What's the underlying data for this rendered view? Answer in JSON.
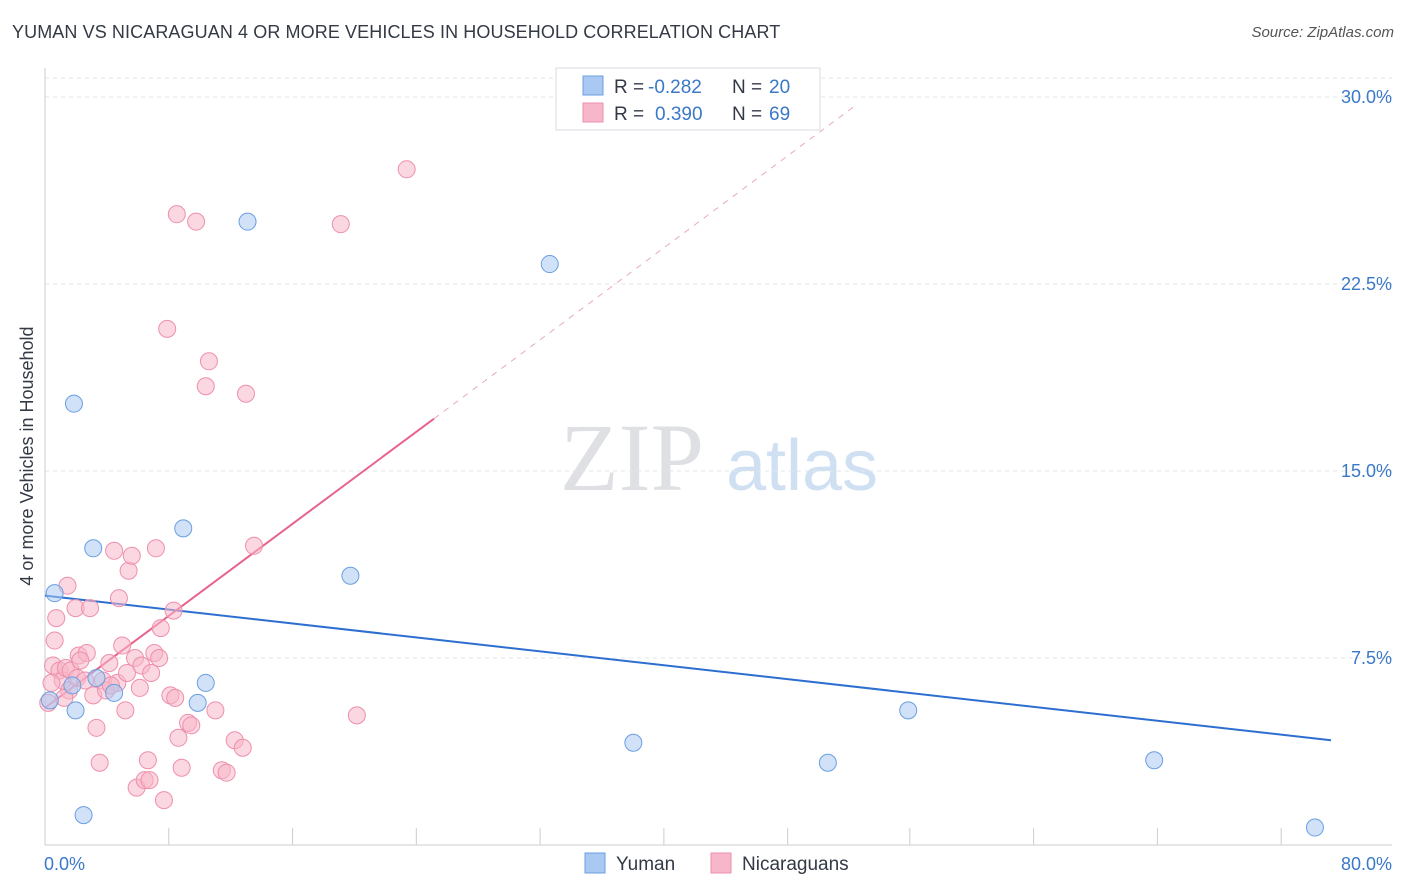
{
  "header": {
    "title": "YUMAN VS NICARAGUAN 4 OR MORE VEHICLES IN HOUSEHOLD CORRELATION CHART",
    "source": "Source: ZipAtlas.com"
  },
  "watermark": {
    "zip": "ZIP",
    "atlas": "atlas"
  },
  "legend": {
    "rows": [
      {
        "r_label": "R =",
        "r_value": "-0.282",
        "n_label": "N =",
        "n_value": "20",
        "color": "#a9c9f2"
      },
      {
        "r_label": "R =",
        "r_value": "0.390",
        "n_label": "N =",
        "n_value": "69",
        "color": "#f7b6c9"
      }
    ]
  },
  "bottom_legend": [
    {
      "label": "Yuman",
      "color": "#a9c9f2"
    },
    {
      "label": "Nicaraguans",
      "color": "#f7b6c9"
    }
  ],
  "chart_data": {
    "type": "scatter",
    "title": "YUMAN VS NICARAGUAN 4 OR MORE VEHICLES IN HOUSEHOLD CORRELATION CHART",
    "xlabel": "",
    "ylabel": "4 or more Vehicles in Household",
    "xlim": [
      0,
      80
    ],
    "ylim": [
      0,
      30.5
    ],
    "y_ticks": [
      {
        "value": 7.5,
        "label": "7.5%"
      },
      {
        "value": 15,
        "label": "15.0%"
      },
      {
        "value": 22.5,
        "label": "22.5%"
      },
      {
        "value": 30,
        "label": "30.0%"
      }
    ],
    "x_tick_labels": {
      "min": "0.0%",
      "max": "80.0%"
    },
    "x_minor_ticks": [
      7.7,
      15.4,
      23.1,
      30.8,
      38.5,
      46.2,
      53.8,
      61.5,
      69.2,
      76.9
    ],
    "series": [
      {
        "name": "Yuman",
        "color": "#a9c9f2",
        "stroke": "#6a9fe0",
        "trend": {
          "x0": 0,
          "y0": 10.0,
          "x1": 80,
          "y1": 4.2,
          "color": "#2d6fd1"
        },
        "points": [
          [
            0.3,
            5.8
          ],
          [
            0.6,
            10.1
          ],
          [
            1.7,
            6.4
          ],
          [
            1.8,
            17.7
          ],
          [
            1.9,
            5.4
          ],
          [
            2.4,
            1.2
          ],
          [
            3.0,
            11.9
          ],
          [
            3.2,
            6.7
          ],
          [
            4.3,
            6.1
          ],
          [
            8.6,
            12.7
          ],
          [
            9.5,
            5.7
          ],
          [
            10.0,
            6.5
          ],
          [
            12.6,
            25.0
          ],
          [
            19.0,
            10.8
          ],
          [
            31.4,
            23.3
          ],
          [
            36.6,
            4.1
          ],
          [
            48.7,
            3.3
          ],
          [
            53.7,
            5.4
          ],
          [
            69.0,
            3.4
          ],
          [
            79.0,
            0.7
          ]
        ]
      },
      {
        "name": "Nicaraguans",
        "color": "#f7b6c9",
        "stroke": "#ee8fab",
        "trend": {
          "x0": 0,
          "y0": 5.5,
          "x1": 24.2,
          "y1": 17.1,
          "dash_to_x": 50.5,
          "dash_to_y": 29.7,
          "color": "#e8638c"
        },
        "points": [
          [
            0.2,
            5.7
          ],
          [
            0.5,
            7.2
          ],
          [
            0.6,
            8.2
          ],
          [
            0.7,
            9.1
          ],
          [
            0.9,
            7.0
          ],
          [
            1.1,
            6.6
          ],
          [
            1.3,
            7.1
          ],
          [
            1.4,
            10.4
          ],
          [
            1.5,
            6.2
          ],
          [
            1.6,
            7.0
          ],
          [
            1.9,
            9.5
          ],
          [
            2.0,
            6.7
          ],
          [
            2.1,
            7.6
          ],
          [
            2.5,
            6.6
          ],
          [
            2.6,
            7.7
          ],
          [
            2.8,
            9.5
          ],
          [
            3.0,
            6.0
          ],
          [
            3.2,
            4.7
          ],
          [
            3.4,
            3.3
          ],
          [
            3.6,
            6.6
          ],
          [
            3.8,
            6.2
          ],
          [
            4.0,
            7.3
          ],
          [
            4.3,
            11.8
          ],
          [
            4.5,
            6.5
          ],
          [
            4.6,
            9.9
          ],
          [
            4.8,
            8.0
          ],
          [
            5.0,
            5.4
          ],
          [
            5.1,
            6.9
          ],
          [
            5.2,
            11.0
          ],
          [
            5.4,
            11.6
          ],
          [
            5.6,
            7.5
          ],
          [
            5.7,
            2.3
          ],
          [
            5.9,
            6.3
          ],
          [
            6.0,
            7.2
          ],
          [
            6.2,
            2.6
          ],
          [
            6.4,
            3.4
          ],
          [
            6.5,
            2.6
          ],
          [
            6.8,
            7.7
          ],
          [
            6.9,
            11.9
          ],
          [
            7.1,
            7.5
          ],
          [
            7.2,
            8.7
          ],
          [
            7.4,
            1.8
          ],
          [
            7.6,
            20.7
          ],
          [
            7.8,
            6.0
          ],
          [
            8.0,
            9.4
          ],
          [
            8.1,
            5.9
          ],
          [
            8.3,
            4.3
          ],
          [
            8.5,
            3.1
          ],
          [
            8.2,
            25.3
          ],
          [
            8.9,
            4.9
          ],
          [
            9.1,
            4.8
          ],
          [
            9.4,
            25.0
          ],
          [
            10.0,
            18.4
          ],
          [
            10.2,
            19.4
          ],
          [
            10.6,
            5.4
          ],
          [
            11.0,
            3.0
          ],
          [
            11.3,
            2.9
          ],
          [
            11.8,
            4.2
          ],
          [
            12.3,
            3.9
          ],
          [
            12.5,
            18.1
          ],
          [
            13.0,
            12.0
          ],
          [
            18.4,
            24.9
          ],
          [
            19.4,
            5.2
          ],
          [
            22.5,
            27.1
          ],
          [
            0.4,
            6.5
          ],
          [
            1.2,
            5.9
          ],
          [
            2.2,
            7.4
          ],
          [
            4.1,
            6.4
          ],
          [
            6.6,
            6.9
          ]
        ]
      }
    ]
  }
}
